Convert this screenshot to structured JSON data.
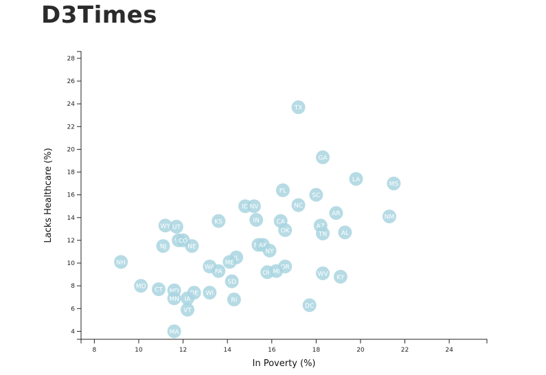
{
  "header": {
    "title": "D3Times"
  },
  "chart_data": {
    "type": "scatter",
    "xlabel": "In Poverty (%)",
    "ylabel": "Lacks Healthcare (%)",
    "xlim": [
      7.4,
      25.7
    ],
    "ylim": [
      3.3,
      28.6
    ],
    "x_ticks": [
      8,
      10,
      12,
      14,
      16,
      18,
      20,
      22,
      24
    ],
    "y_ticks": [
      4,
      6,
      8,
      10,
      12,
      14,
      16,
      18,
      20,
      22,
      24,
      26,
      28
    ],
    "grid": false,
    "points": [
      {
        "label": "TX",
        "x": 17.2,
        "y": 23.7
      },
      {
        "label": "GA",
        "x": 18.3,
        "y": 19.3
      },
      {
        "label": "LA",
        "x": 19.8,
        "y": 17.4
      },
      {
        "label": "MS",
        "x": 21.5,
        "y": 17.0
      },
      {
        "label": "FL",
        "x": 16.5,
        "y": 16.4
      },
      {
        "label": "SC",
        "x": 18.0,
        "y": 16.0
      },
      {
        "label": "ID",
        "x": 14.8,
        "y": 15.0
      },
      {
        "label": "NV",
        "x": 15.2,
        "y": 15.0
      },
      {
        "label": "NC",
        "x": 17.2,
        "y": 15.1
      },
      {
        "label": "AR",
        "x": 18.9,
        "y": 14.4
      },
      {
        "label": "NM",
        "x": 21.3,
        "y": 14.1
      },
      {
        "label": "KS",
        "x": 13.6,
        "y": 13.7
      },
      {
        "label": "IN",
        "x": 15.3,
        "y": 13.8
      },
      {
        "label": "CA",
        "x": 16.4,
        "y": 13.7
      },
      {
        "label": "AZ",
        "x": 18.2,
        "y": 13.3
      },
      {
        "label": "WY",
        "x": 11.2,
        "y": 13.3
      },
      {
        "label": "UT",
        "x": 11.7,
        "y": 13.2
      },
      {
        "label": "OK",
        "x": 16.6,
        "y": 12.9
      },
      {
        "label": "TN",
        "x": 18.3,
        "y": 12.6
      },
      {
        "label": "AL",
        "x": 19.3,
        "y": 12.7
      },
      {
        "label": "VA",
        "x": 11.8,
        "y": 12.0
      },
      {
        "label": "CO",
        "x": 12.0,
        "y": 12.0
      },
      {
        "label": "NE",
        "x": 12.4,
        "y": 11.5
      },
      {
        "label": "NJ",
        "x": 11.1,
        "y": 11.5
      },
      {
        "label": "MT",
        "x": 15.4,
        "y": 11.6
      },
      {
        "label": "AK",
        "x": 15.6,
        "y": 11.6
      },
      {
        "label": "NY",
        "x": 15.9,
        "y": 11.1
      },
      {
        "label": "IL",
        "x": 14.4,
        "y": 10.5
      },
      {
        "label": "NH",
        "x": 9.2,
        "y": 10.1
      },
      {
        "label": "ME",
        "x": 14.1,
        "y": 10.1
      },
      {
        "label": "WA",
        "x": 13.2,
        "y": 9.7
      },
      {
        "label": "PA",
        "x": 13.6,
        "y": 9.3
      },
      {
        "label": "OR",
        "x": 16.6,
        "y": 9.7
      },
      {
        "label": "OH",
        "x": 15.8,
        "y": 9.2
      },
      {
        "label": "MI",
        "x": 16.2,
        "y": 9.3
      },
      {
        "label": "WV",
        "x": 18.3,
        "y": 9.1
      },
      {
        "label": "KY",
        "x": 19.1,
        "y": 8.8
      },
      {
        "label": "SD",
        "x": 14.2,
        "y": 8.4
      },
      {
        "label": "MD",
        "x": 10.1,
        "y": 8.0
      },
      {
        "label": "CT",
        "x": 10.9,
        "y": 7.7
      },
      {
        "label": "ND",
        "x": 11.6,
        "y": 7.6
      },
      {
        "label": "DE",
        "x": 12.5,
        "y": 7.4
      },
      {
        "label": "WI",
        "x": 13.2,
        "y": 7.4
      },
      {
        "label": "MN",
        "x": 11.6,
        "y": 6.9
      },
      {
        "label": "IA",
        "x": 12.2,
        "y": 6.9
      },
      {
        "label": "RI",
        "x": 14.3,
        "y": 6.8
      },
      {
        "label": "DC",
        "x": 17.7,
        "y": 6.3
      },
      {
        "label": "VT",
        "x": 12.2,
        "y": 5.9
      },
      {
        "label": "MA",
        "x": 11.6,
        "y": 4.0
      }
    ]
  }
}
